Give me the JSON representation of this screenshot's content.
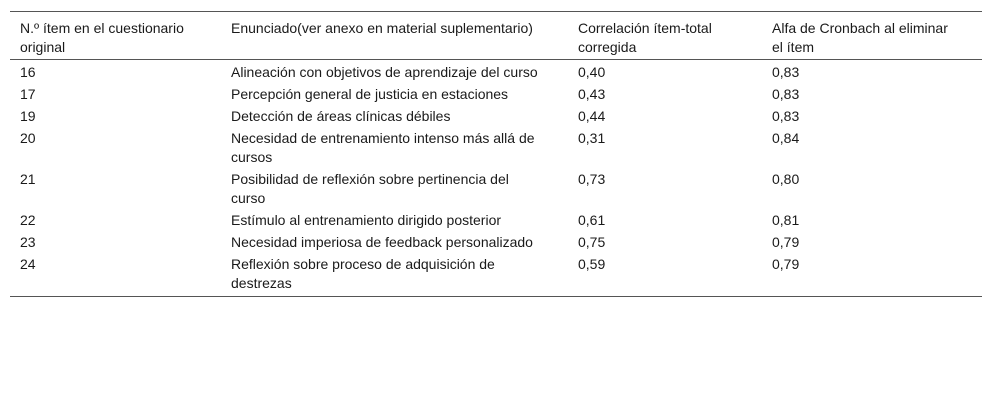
{
  "table": {
    "headers": [
      "N.º ítem en el cuestionario original",
      "Enunciado(ver anexo en material suplementario)",
      "Correlación ítem-total corregida",
      "Alfa de Cronbach al eliminar el ítem"
    ],
    "rows": [
      [
        "16",
        "Alineación con objetivos de aprendizaje del curso",
        "0,40",
        "0,83"
      ],
      [
        "17",
        "Percepción general de justicia en estaciones",
        "0,43",
        "0,83"
      ],
      [
        "19",
        "Detección de áreas clínicas débiles",
        "0,44",
        "0,83"
      ],
      [
        "20",
        "Necesidad de entrenamiento intenso más allá de cursos",
        "0,31",
        "0,84"
      ],
      [
        "21",
        "Posibilidad de reflexión sobre pertinencia del curso",
        "0,73",
        "0,80"
      ],
      [
        "22",
        "Estímulo al entrenamiento dirigido posterior",
        "0,61",
        "0,81"
      ],
      [
        "23",
        "Necesidad imperiosa de feedback personalizado",
        "0,75",
        "0,79"
      ],
      [
        "24",
        "Reflexión sobre proceso de adquisición de destrezas",
        "0,59",
        "0,79"
      ]
    ]
  }
}
